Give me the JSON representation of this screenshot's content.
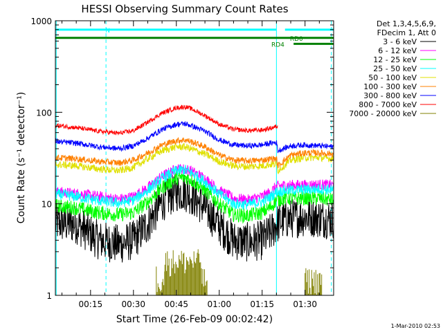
{
  "chart_data": {
    "type": "line",
    "title": "HESSI Observing Summary Count Rates",
    "xlabel": "Start Time (26-Feb-09 00:02:42)",
    "ylabel": "Count Rate (s⁻¹ detector⁻¹)",
    "x_unit": "minutes after 00:00",
    "xlim": [
      2.7,
      100
    ],
    "ylim": [
      1,
      1000
    ],
    "y_scale": "log",
    "grid": false,
    "legend_position": "right",
    "x_ticks": [
      {
        "x": 15,
        "label": "00:15"
      },
      {
        "x": 30,
        "label": "00:30"
      },
      {
        "x": 45,
        "label": "00:45"
      },
      {
        "x": 60,
        "label": "01:00"
      },
      {
        "x": 75,
        "label": "01:15"
      },
      {
        "x": 90,
        "label": "01:30"
      }
    ],
    "y_ticks": [
      {
        "y": 1,
        "label": "1"
      },
      {
        "y": 10,
        "label": "10"
      },
      {
        "y": 100,
        "label": "100"
      },
      {
        "y": 1000,
        "label": "1000"
      }
    ],
    "legend_header": [
      "Det 1,3,4,5,6,9,",
      "FDecim 1, Att 0"
    ],
    "series": [
      {
        "name": "3 - 6 keV",
        "color": "#000000",
        "x": [
          2.7,
          10,
          18,
          25,
          30,
          35,
          40,
          45,
          48,
          50,
          55,
          60,
          65,
          70,
          75,
          78,
          80,
          83,
          90,
          95,
          100
        ],
        "values": [
          6.2,
          6.0,
          4.0,
          3.6,
          4.0,
          6.0,
          10.5,
          13.5,
          13.5,
          12.5,
          9,
          5.8,
          4.0,
          3.8,
          4.0,
          4.8,
          6.0,
          6.8,
          7.2,
          7.0,
          6.8
        ],
        "noise": 0.22
      },
      {
        "name": "6 - 12 keV",
        "color": "#ff00ff",
        "x": [
          2.7,
          10,
          18,
          25,
          30,
          35,
          40,
          45,
          48,
          50,
          55,
          60,
          65,
          70,
          75,
          78,
          80,
          83,
          90,
          95,
          100
        ],
        "values": [
          13.5,
          13,
          12,
          11.2,
          12,
          15,
          20,
          24,
          24,
          23,
          19,
          14,
          11.5,
          11,
          12,
          13.5,
          15.5,
          16,
          16,
          16.2,
          16
        ],
        "noise": 0.06
      },
      {
        "name": "12 - 25 keV",
        "color": "#00ff00",
        "x": [
          2.7,
          10,
          18,
          25,
          30,
          35,
          40,
          45,
          48,
          50,
          55,
          60,
          65,
          70,
          75,
          78,
          80,
          83,
          90,
          95,
          100
        ],
        "values": [
          9.5,
          9.0,
          8.0,
          7.6,
          8.0,
          10.5,
          15,
          19,
          19.5,
          18.5,
          14,
          10,
          7.6,
          7.4,
          8.0,
          9.2,
          11,
          11.5,
          11.5,
          11.5,
          11
        ],
        "noise": 0.08
      },
      {
        "name": "25 - 50 keV",
        "color": "#00ffff",
        "x": [
          2.7,
          10,
          18,
          25,
          30,
          35,
          40,
          45,
          48,
          50,
          55,
          60,
          65,
          70,
          75,
          78,
          80,
          83,
          90,
          95,
          100
        ],
        "values": [
          12.8,
          12,
          10.8,
          10.2,
          11,
          14,
          19,
          23,
          23.5,
          22,
          17.5,
          12.8,
          10,
          9.8,
          10.5,
          12,
          13.5,
          14,
          14.3,
          14.5,
          14.2
        ],
        "noise": 0.06
      },
      {
        "name": "50 - 100 keV",
        "color": "#e0e000",
        "x": [
          2.7,
          10,
          18,
          25,
          30,
          35,
          40,
          45,
          48,
          50,
          55,
          60,
          65,
          70,
          75,
          78,
          80,
          80.5,
          85,
          90,
          95,
          100
        ],
        "values": [
          27,
          26,
          24,
          23,
          25,
          31,
          38,
          42,
          42,
          40,
          35,
          29,
          26,
          25.5,
          26,
          27,
          27,
          23,
          30,
          32,
          32,
          31
        ],
        "noise": 0.04
      },
      {
        "name": "100 - 300 keV",
        "color": "#ff8000",
        "x": [
          2.7,
          10,
          18,
          25,
          30,
          35,
          40,
          45,
          48,
          50,
          55,
          60,
          65,
          70,
          75,
          78,
          80,
          80.5,
          85,
          90,
          95,
          100
        ],
        "values": [
          32,
          31,
          29,
          28,
          30,
          36,
          44,
          49,
          50,
          48,
          42,
          34,
          30,
          29.5,
          30,
          31,
          31,
          26,
          34,
          36,
          36,
          35
        ],
        "noise": 0.035
      },
      {
        "name": "300 - 800 keV",
        "color": "#0000ff",
        "x": [
          2.7,
          10,
          18,
          25,
          30,
          35,
          40,
          45,
          48,
          50,
          55,
          60,
          65,
          70,
          75,
          78,
          80,
          80.5,
          85,
          90,
          95,
          100
        ],
        "values": [
          48,
          46,
          42,
          40,
          43,
          52,
          65,
          74,
          75,
          72,
          62,
          50,
          44,
          43,
          44,
          46,
          47,
          38,
          43,
          44,
          43,
          42
        ],
        "noise": 0.03
      },
      {
        "name": "800 - 7000 keV",
        "color": "#ff0000",
        "x": [
          2.7,
          10,
          18,
          25,
          30,
          35,
          40,
          45,
          48,
          50,
          55,
          60,
          65,
          70,
          75,
          78,
          80,
          80.5
        ],
        "values": [
          72,
          68,
          62,
          59,
          63,
          78,
          98,
          112,
          115,
          110,
          92,
          74,
          65,
          63,
          64,
          67,
          70,
          70
        ],
        "noise": 0.025
      },
      {
        "name": "7000 - 20000 keV",
        "color": "#808000",
        "x": [],
        "values": [],
        "noise": 0
      }
    ],
    "annotations": {
      "attenuator_bar": {
        "label": "N",
        "color": "#00ffff",
        "y": 800,
        "segments": [
          [
            2.7,
            80
          ],
          [
            83,
            100
          ]
        ],
        "label_x": 21
      },
      "rd0_bar": {
        "label": "RD0",
        "color": "#008000",
        "y": 650,
        "segments": [
          [
            2.7,
            100
          ]
        ],
        "label_x": 87
      },
      "rd4_bar": {
        "label": "RD4",
        "color": "#008000",
        "y": 560,
        "segments": [
          [
            86,
            100
          ]
        ],
        "label_x": 80.5
      },
      "vertical_lines": [
        {
          "x": 3.0,
          "color": "#00ffff",
          "style": "solid"
        },
        {
          "x": 20.4,
          "color": "#00ffff",
          "style": "dashed"
        },
        {
          "x": 80.0,
          "color": "#00ffff",
          "style": "solid"
        },
        {
          "x": 99.2,
          "color": "#00ffff",
          "style": "dashed"
        }
      ]
    }
  },
  "footer_timestamp": "1-Mar-2010 02:53"
}
